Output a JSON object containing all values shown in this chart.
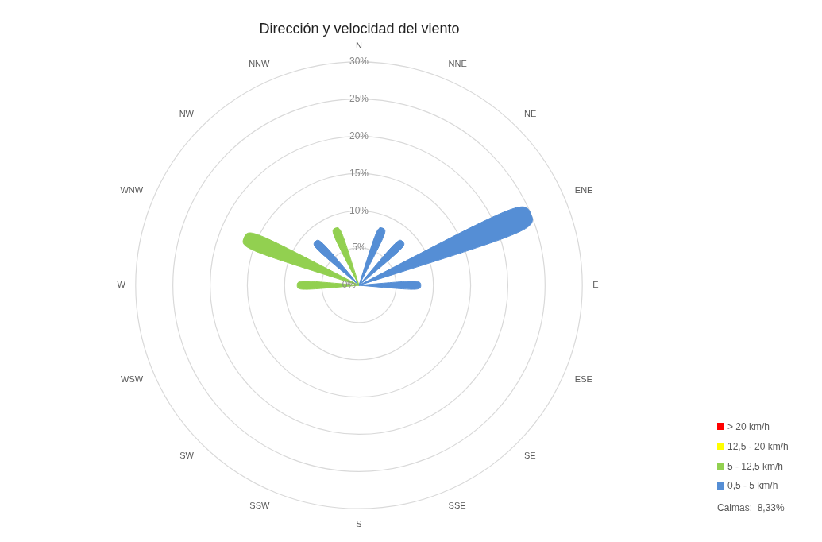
{
  "chart_data": {
    "type": "radar",
    "title": "Dirección y velocidad del viento",
    "categories": [
      "N",
      "NNE",
      "NE",
      "ENE",
      "E",
      "ESE",
      "SE",
      "SSE",
      "S",
      "SSW",
      "SW",
      "WSW",
      "W",
      "WNW",
      "NW",
      "NNW"
    ],
    "series": [
      {
        "name": "0,5 - 5 km/h",
        "color": "#558ed5",
        "values": [
          0,
          8.3,
          8.3,
          25,
          8.3,
          0,
          0,
          0,
          0,
          0,
          0,
          0,
          0,
          0,
          8.3,
          0
        ]
      },
      {
        "name": "5 - 12,5 km/h",
        "color": "#92d050",
        "values": [
          0,
          0,
          0,
          0,
          0,
          0,
          0,
          0,
          0,
          0,
          0,
          0,
          8.3,
          16.7,
          0,
          8.3
        ]
      },
      {
        "name": "12,5 - 20 km/h",
        "color": "#ffff00",
        "values": [
          null,
          null,
          null,
          null,
          null,
          null,
          null,
          null,
          null,
          null,
          null,
          null,
          null,
          null,
          null,
          null
        ]
      },
      {
        "name": "> 20 km/h",
        "color": "#ff0000",
        "values": [
          null,
          null,
          null,
          null,
          null,
          null,
          null,
          null,
          null,
          null,
          null,
          null,
          null,
          null,
          null,
          null
        ]
      }
    ],
    "ylim": [
      0,
      30
    ],
    "yticks": [
      {
        "value": 0,
        "label": "0%"
      },
      {
        "value": 5,
        "label": "5%"
      },
      {
        "value": 10,
        "label": "10%"
      },
      {
        "value": 15,
        "label": "15%"
      },
      {
        "value": 20,
        "label": "20%"
      },
      {
        "value": 25,
        "label": "25%"
      },
      {
        "value": 30,
        "label": "30%"
      }
    ],
    "grid": true,
    "legend": "bottom right",
    "annotations": [
      "Calmas:  8,33%"
    ]
  }
}
